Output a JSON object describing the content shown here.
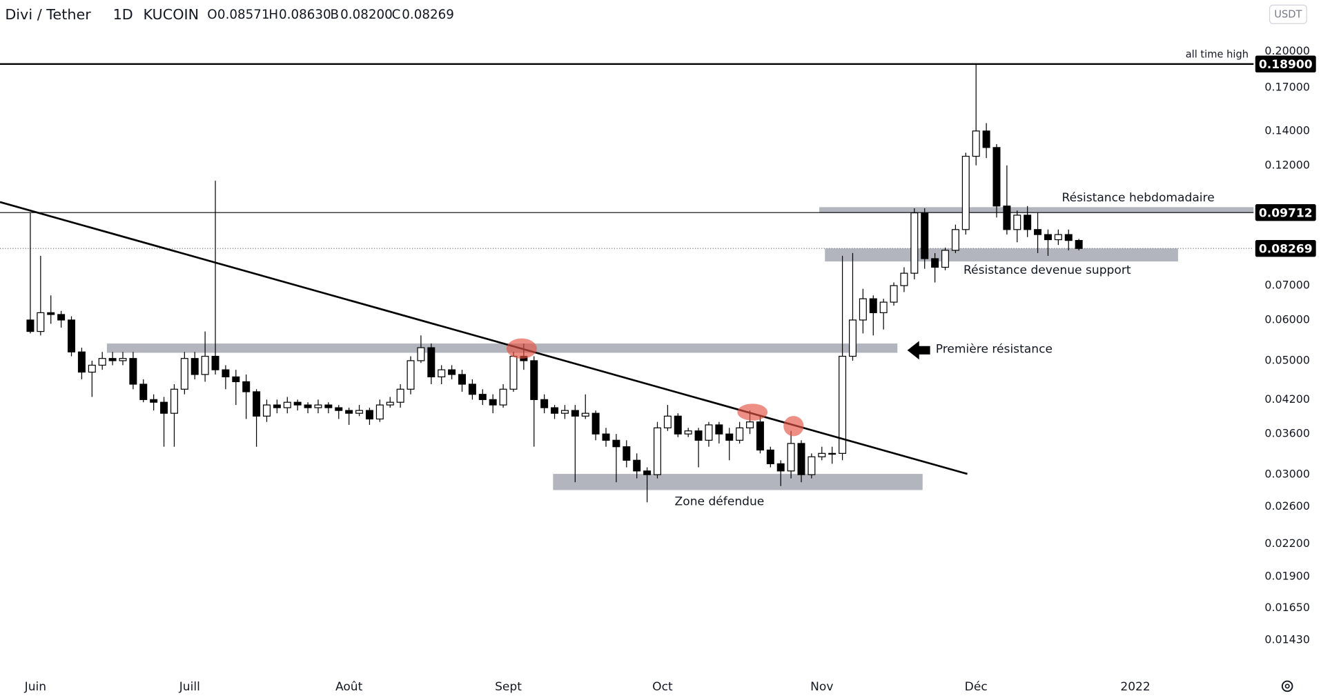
{
  "header": {
    "symbol": "Divi / Tether",
    "interval": "1D",
    "exchange": "KUCOIN",
    "ohlc": [
      {
        "key": "O",
        "value": 0.08571,
        "label": "0.08571"
      },
      {
        "key": "H",
        "value": 0.0863,
        "label": "0.08630"
      },
      {
        "key": "B",
        "value": 0.082,
        "label": "0.08200"
      },
      {
        "key": "C",
        "value": 0.08269,
        "label": "0.08269"
      }
    ],
    "currency_button": "USDT"
  },
  "chart_data": {
    "type": "candlestick",
    "log_scale": true,
    "grid": false,
    "up_color": "#ffffff",
    "down_color": "#000000",
    "x": [
      -1,
      1,
      3,
      5,
      7,
      9,
      11,
      13,
      15,
      17,
      19,
      21,
      23,
      25,
      27,
      29,
      31,
      33,
      35,
      37,
      39,
      41,
      43,
      45,
      47,
      49,
      51,
      53,
      55,
      57,
      59,
      61,
      63,
      65,
      67,
      69,
      71,
      73,
      75,
      77,
      79,
      81,
      83,
      85,
      87,
      89,
      91,
      93,
      95,
      97,
      99,
      101,
      103,
      105,
      107,
      109,
      111,
      113,
      115,
      117,
      119,
      121,
      123,
      125,
      127,
      129,
      131,
      133,
      135,
      137,
      139,
      141,
      143,
      145,
      147,
      149,
      151,
      153,
      155,
      157,
      159,
      161,
      163,
      165,
      167,
      169,
      171,
      173,
      175,
      177,
      179,
      181,
      183,
      185,
      187,
      189,
      191,
      193,
      195,
      197,
      199,
      201,
      203
    ],
    "open": [
      0.06,
      0.057,
      0.062,
      0.0615,
      0.06,
      0.052,
      0.0475,
      0.049,
      0.0505,
      0.05,
      0.0505,
      0.045,
      0.042,
      0.0415,
      0.0395,
      0.044,
      0.0505,
      0.047,
      0.051,
      0.048,
      0.0465,
      0.0455,
      0.0435,
      0.039,
      0.041,
      0.0405,
      0.0415,
      0.041,
      0.0405,
      0.041,
      0.0405,
      0.04,
      0.0395,
      0.04,
      0.0385,
      0.041,
      0.0415,
      0.044,
      0.05,
      0.053,
      0.0465,
      0.048,
      0.047,
      0.045,
      0.043,
      0.042,
      0.041,
      0.044,
      0.051,
      0.05,
      0.042,
      0.0405,
      0.0395,
      0.04,
      0.039,
      0.0395,
      0.036,
      0.035,
      0.034,
      0.032,
      0.0305,
      0.03,
      0.037,
      0.039,
      0.036,
      0.0365,
      0.035,
      0.0375,
      0.036,
      0.035,
      0.037,
      0.038,
      0.0335,
      0.0315,
      0.0305,
      0.0345,
      0.03,
      0.0325,
      0.033,
      0.033,
      0.051,
      0.06,
      0.066,
      0.062,
      0.065,
      0.07,
      0.074,
      0.097,
      0.079,
      0.076,
      0.082,
      0.09,
      0.125,
      0.14,
      0.13,
      0.1,
      0.09,
      0.096,
      0.09,
      0.088,
      0.086,
      0.088,
      0.08571
    ],
    "high": [
      0.097,
      0.08,
      0.067,
      0.0625,
      0.061,
      0.053,
      0.05,
      0.052,
      0.052,
      0.052,
      0.052,
      0.046,
      0.043,
      0.0425,
      0.045,
      0.052,
      0.052,
      0.057,
      0.112,
      0.049,
      0.048,
      0.047,
      0.044,
      0.042,
      0.042,
      0.0425,
      0.042,
      0.0415,
      0.042,
      0.0415,
      0.041,
      0.0405,
      0.041,
      0.0405,
      0.042,
      0.0425,
      0.045,
      0.051,
      0.056,
      0.054,
      0.049,
      0.049,
      0.048,
      0.046,
      0.044,
      0.043,
      0.045,
      0.052,
      0.054,
      0.051,
      0.043,
      0.041,
      0.041,
      0.041,
      0.043,
      0.04,
      0.037,
      0.036,
      0.035,
      0.033,
      0.031,
      0.038,
      0.041,
      0.0395,
      0.037,
      0.037,
      0.038,
      0.038,
      0.037,
      0.038,
      0.04,
      0.039,
      0.034,
      0.032,
      0.0365,
      0.035,
      0.033,
      0.034,
      0.034,
      0.08,
      0.081,
      0.069,
      0.067,
      0.066,
      0.071,
      0.076,
      0.099,
      0.099,
      0.081,
      0.083,
      0.092,
      0.127,
      0.189,
      0.145,
      0.132,
      0.12,
      0.098,
      0.1,
      0.097,
      0.09,
      0.09,
      0.09,
      0.0863
    ],
    "low": [
      0.0565,
      0.056,
      0.059,
      0.058,
      0.051,
      0.046,
      0.0425,
      0.048,
      0.049,
      0.049,
      0.044,
      0.0415,
      0.04,
      0.034,
      0.034,
      0.043,
      0.046,
      0.0455,
      0.047,
      0.044,
      0.041,
      0.0385,
      0.034,
      0.038,
      0.0395,
      0.0395,
      0.04,
      0.0395,
      0.0395,
      0.0395,
      0.0385,
      0.0375,
      0.039,
      0.0375,
      0.038,
      0.0405,
      0.0405,
      0.043,
      0.0495,
      0.045,
      0.045,
      0.046,
      0.0435,
      0.042,
      0.041,
      0.0395,
      0.0405,
      0.0435,
      0.048,
      0.034,
      0.0395,
      0.0385,
      0.0385,
      0.029,
      0.0385,
      0.035,
      0.034,
      0.029,
      0.031,
      0.0295,
      0.0265,
      0.0295,
      0.0365,
      0.0355,
      0.0355,
      0.031,
      0.034,
      0.0345,
      0.032,
      0.0345,
      0.036,
      0.033,
      0.031,
      0.0285,
      0.0295,
      0.029,
      0.0295,
      0.032,
      0.0315,
      0.032,
      0.05,
      0.0565,
      0.056,
      0.0575,
      0.064,
      0.068,
      0.072,
      0.0755,
      0.071,
      0.075,
      0.081,
      0.088,
      0.12,
      0.124,
      0.095,
      0.088,
      0.085,
      0.087,
      0.081,
      0.08,
      0.084,
      0.082,
      0.082
    ],
    "close": [
      0.057,
      0.062,
      0.0615,
      0.06,
      0.052,
      0.0475,
      0.049,
      0.0505,
      0.05,
      0.0505,
      0.045,
      0.042,
      0.0415,
      0.0395,
      0.044,
      0.0505,
      0.047,
      0.051,
      0.048,
      0.0465,
      0.0455,
      0.0435,
      0.039,
      0.041,
      0.0405,
      0.0415,
      0.041,
      0.0405,
      0.041,
      0.0405,
      0.04,
      0.0395,
      0.04,
      0.0385,
      0.041,
      0.0415,
      0.044,
      0.05,
      0.053,
      0.0465,
      0.048,
      0.047,
      0.045,
      0.043,
      0.042,
      0.041,
      0.044,
      0.051,
      0.05,
      0.042,
      0.0405,
      0.0395,
      0.04,
      0.039,
      0.0395,
      0.036,
      0.035,
      0.034,
      0.032,
      0.0305,
      0.03,
      0.037,
      0.039,
      0.036,
      0.0365,
      0.035,
      0.0375,
      0.036,
      0.035,
      0.037,
      0.038,
      0.0335,
      0.0315,
      0.0305,
      0.0345,
      0.03,
      0.0325,
      0.033,
      0.033,
      0.051,
      0.06,
      0.066,
      0.062,
      0.065,
      0.07,
      0.074,
      0.097,
      0.079,
      0.076,
      0.082,
      0.09,
      0.125,
      0.14,
      0.13,
      0.1,
      0.09,
      0.096,
      0.09,
      0.088,
      0.086,
      0.088,
      0.08571,
      0.08269
    ],
    "xlim": [
      -6.9,
      237
    ],
    "xticks": [
      {
        "value": 0,
        "label": "Juin"
      },
      {
        "value": 30,
        "label": "Juill"
      },
      {
        "value": 61,
        "label": "Août"
      },
      {
        "value": 92,
        "label": "Sept"
      },
      {
        "value": 122,
        "label": "Oct"
      },
      {
        "value": 153,
        "label": "Nov"
      },
      {
        "value": 183,
        "label": "Déc"
      },
      {
        "value": 214,
        "label": "2022"
      }
    ],
    "ylim": [
      0.0123,
      0.2518
    ],
    "yticks": [
      {
        "value": 0.2,
        "label": "0.20000"
      },
      {
        "value": 0.17,
        "label": "0.17000"
      },
      {
        "value": 0.14,
        "label": "0.14000"
      },
      {
        "value": 0.12,
        "label": "0.12000"
      },
      {
        "value": 0.07,
        "label": "0.07000"
      },
      {
        "value": 0.06,
        "label": "0.06000"
      },
      {
        "value": 0.05,
        "label": "0.05000"
      },
      {
        "value": 0.042,
        "label": "0.04200"
      },
      {
        "value": 0.036,
        "label": "0.03600"
      },
      {
        "value": 0.03,
        "label": "0.03000"
      },
      {
        "value": 0.026,
        "label": "0.02600"
      },
      {
        "value": 0.022,
        "label": "0.02200"
      },
      {
        "value": 0.019,
        "label": "0.01900"
      },
      {
        "value": 0.0165,
        "label": "0.01650"
      },
      {
        "value": 0.0143,
        "label": "0.01430"
      }
    ],
    "hlines": [
      {
        "value": 0.189,
        "label": "0.18900",
        "annotation": "all time high",
        "width": 2
      },
      {
        "value": 0.09712,
        "label": "0.09712",
        "width": 1
      },
      {
        "value": 0.08269,
        "label": "0.08269",
        "width": 1,
        "dotted": true
      }
    ],
    "zones": [
      {
        "label": "Résistance hebdomadaire",
        "x": [
          152.5,
          237
        ],
        "y": [
          0.097,
          0.0995
        ]
      },
      {
        "label": "Résistance devenue support",
        "x": [
          153.6,
          222.3
        ],
        "y": [
          0.078,
          0.0827
        ]
      },
      {
        "label": "Première résistance",
        "x": [
          13.9,
          167.7
        ],
        "y": [
          0.0518,
          0.054
        ]
      },
      {
        "label": "Zone défendue",
        "x": [
          100.7,
          172.6
        ],
        "y": [
          0.028,
          0.0301
        ]
      }
    ],
    "trendline": {
      "x": [
        -6.9,
        181.3
      ],
      "y": [
        0.1018,
        0.0301
      ]
    },
    "highlights": {
      "x": [
        94.6,
        139.5,
        147.5
      ],
      "y": [
        0.0528,
        0.0397,
        0.0373
      ]
    }
  }
}
